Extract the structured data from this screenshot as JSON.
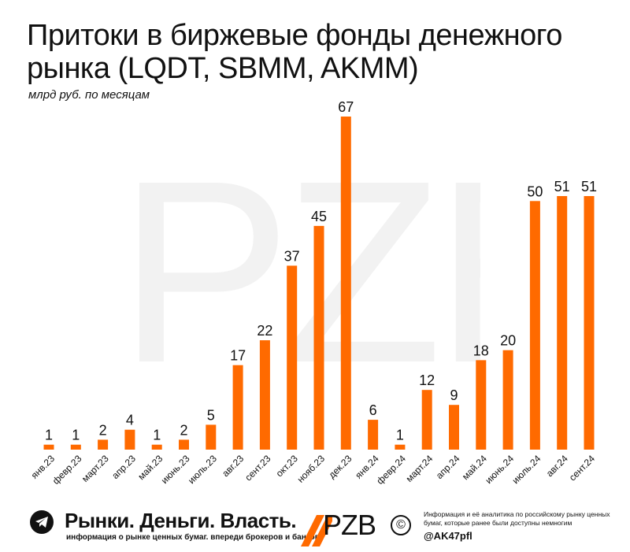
{
  "header": {
    "title": "Притоки в биржевые фонды денежного рынка (LQDT, SBMM, AKMM)",
    "subtitle": "млрд руб. по месяцам"
  },
  "watermark": {
    "text": "PZB"
  },
  "colors": {
    "bar": "#ff6a00",
    "text": "#111111",
    "watermark": "#f2f2f2"
  },
  "chart_data": {
    "type": "bar",
    "title": "Притоки в биржевые фонды денежного рынка (LQDT, SBMM, AKMM)",
    "subtitle": "млрд руб. по месяцам",
    "xlabel": "",
    "ylabel": "",
    "ylim": [
      0,
      67
    ],
    "grid": false,
    "categories": [
      "янв.23",
      "февр.23",
      "март.23",
      "апр.23",
      "май.23",
      "июнь.23",
      "июль.23",
      "авг.23",
      "сент.23",
      "окт.23",
      "нояб.23",
      "дек.23",
      "янв.24",
      "февр.24",
      "март.24",
      "апр.24",
      "май.24",
      "июнь.24",
      "июль.24",
      "авг.24",
      "сент.24"
    ],
    "values": [
      1,
      1,
      2,
      4,
      1,
      2,
      5,
      17,
      22,
      37,
      45,
      67,
      6,
      1,
      12,
      9,
      18,
      20,
      50,
      51,
      51
    ],
    "labels": [
      "1",
      "1",
      "2",
      "4",
      "1",
      "2",
      "5",
      "17",
      "22",
      "37",
      "45",
      "67",
      "6",
      "1",
      "12",
      "9",
      "18",
      "20",
      "50",
      "51",
      "51"
    ]
  },
  "footer": {
    "telegram_icon": "telegram-icon",
    "brand_name": "Рынки. Деньги. Власть.",
    "brand_tagline": "информация о рынке ценных бумаг. впереди брокеров и банков.",
    "logo_text": "PZB",
    "copyright_symbol": "©",
    "info_text": "Информация и её аналитика по российскому рынку ценных бумаг, которые ранее были доступны немногим",
    "handle": "@AK47pfl"
  }
}
